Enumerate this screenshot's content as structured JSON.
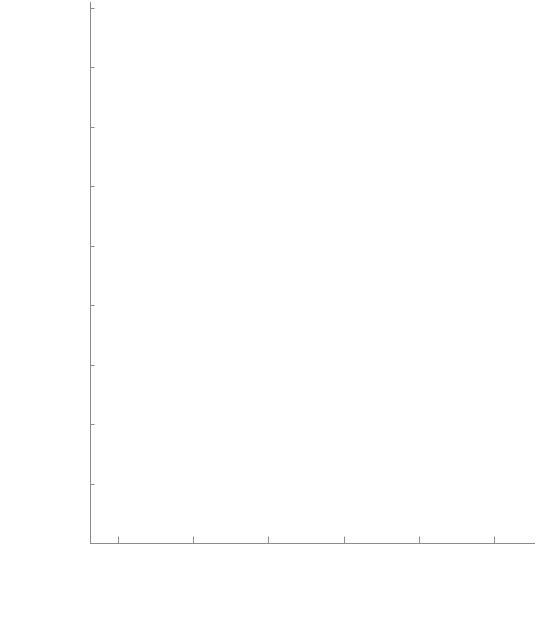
{
  "chart_data": {
    "type": "line",
    "title": "",
    "xlabel": "",
    "ylabel": "",
    "x_ticks": [
      1,
      2,
      3,
      4,
      5,
      6
    ],
    "y_ticks": [
      1,
      2,
      3,
      4,
      5,
      6,
      7,
      8,
      9
    ],
    "x_tick_labels": [
      "",
      "",
      "",
      "",
      "",
      ""
    ],
    "y_tick_labels": [
      "",
      "",
      "",
      "",
      "",
      "",
      "",
      "",
      ""
    ],
    "xlim": [
      0.63,
      6.55
    ],
    "ylim": [
      0,
      9.1
    ],
    "series": [],
    "grid": false,
    "legend": "none",
    "colors": {
      "axis": "#8c8c8c",
      "background": "#ffffff"
    }
  }
}
